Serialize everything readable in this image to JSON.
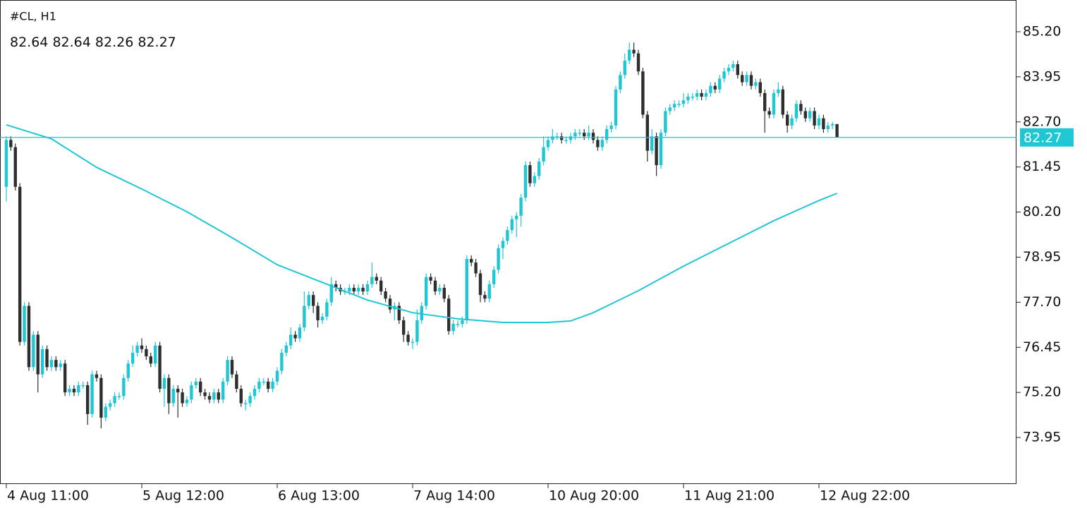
{
  "chart_data": {
    "type": "candlestick",
    "title": "#CL, H1",
    "up_color": "#1fc6d4",
    "down_color": "#2e2e2e",
    "price_line_color": "#1fc6d4",
    "ylim": [
      72.66,
      86.08
    ],
    "yticks": [
      {
        "value": 85.2,
        "label": "85.20"
      },
      {
        "value": 83.95,
        "label": "83.95"
      },
      {
        "value": 82.7,
        "label": "82.70"
      },
      {
        "value": 81.45,
        "label": "81.45"
      },
      {
        "value": 80.2,
        "label": "80.20"
      },
      {
        "value": 78.95,
        "label": "78.95"
      },
      {
        "value": 77.7,
        "label": "77.70"
      },
      {
        "value": 76.45,
        "label": "76.45"
      },
      {
        "value": 75.2,
        "label": "75.20"
      },
      {
        "value": 73.95,
        "label": "73.95"
      }
    ],
    "xlim": [
      -1.4,
      223.75
    ],
    "xticks": [
      {
        "value": 0,
        "label": "4 Aug 11:00"
      },
      {
        "value": 30,
        "label": "5 Aug 12:00"
      },
      {
        "value": 60,
        "label": "6 Aug 13:00"
      },
      {
        "value": 90,
        "label": "7 Aug 14:00"
      },
      {
        "value": 120,
        "label": "10 Aug 20:00"
      },
      {
        "value": 150,
        "label": "11 Aug 21:00"
      },
      {
        "value": 180,
        "label": "12 Aug 22:00"
      }
    ],
    "candles": {
      "open": [
        80.9,
        82.2,
        82.0,
        80.9,
        76.6,
        77.6,
        75.9,
        76.8,
        75.7,
        76.4,
        75.9,
        76.1,
        75.9,
        76.0,
        75.2,
        75.3,
        75.2,
        75.4,
        75.4,
        74.6,
        75.7,
        75.6,
        74.5,
        74.8,
        74.9,
        75.1,
        75.1,
        75.6,
        76.0,
        76.3,
        76.5,
        76.4,
        76.2,
        76.0,
        76.5,
        75.3,
        75.6,
        74.9,
        75.3,
        75.2,
        74.9,
        75.0,
        75.4,
        75.5,
        75.2,
        75.1,
        75.0,
        75.2,
        75.0,
        75.5,
        76.1,
        75.7,
        75.3,
        74.9,
        74.9,
        75.1,
        75.3,
        75.5,
        75.5,
        75.3,
        75.5,
        75.8,
        76.3,
        76.5,
        76.8,
        76.7,
        77.0,
        77.6,
        77.9,
        77.6,
        77.2,
        77.3,
        77.7,
        78.2,
        78.1,
        78.0,
        78.0,
        78.1,
        78.0,
        78.1,
        78.0,
        78.2,
        78.4,
        78.3,
        78.0,
        77.8,
        77.5,
        77.6,
        77.2,
        76.8,
        76.6,
        76.6,
        77.2,
        77.6,
        78.4,
        78.3,
        78.0,
        78.1,
        77.8,
        76.9,
        77.1,
        77.1,
        77.2,
        78.9,
        78.8,
        78.5,
        77.9,
        77.8,
        78.2,
        78.6,
        79.2,
        79.4,
        79.7,
        80.0,
        80.1,
        80.6,
        81.5,
        81.0,
        81.2,
        81.6,
        82.0,
        82.2,
        82.3,
        82.3,
        82.2,
        82.2,
        82.3,
        82.4,
        82.4,
        82.3,
        82.4,
        82.2,
        82.0,
        82.2,
        82.5,
        82.6,
        83.6,
        84.0,
        84.4,
        84.7,
        84.6,
        84.1,
        82.9,
        81.9,
        82.3,
        81.5,
        82.4,
        83.0,
        83.1,
        83.2,
        83.2,
        83.3,
        83.4,
        83.4,
        83.5,
        83.4,
        83.5,
        83.7,
        83.6,
        83.9,
        84.1,
        84.2,
        84.3,
        84.0,
        83.8,
        84.0,
        83.7,
        83.8,
        83.5,
        83.0,
        82.9,
        83.5,
        83.6,
        82.9,
        82.6,
        82.8,
        83.2,
        83.0,
        82.8,
        83.0,
        82.6,
        82.8,
        82.5,
        82.6,
        82.64
      ],
      "high": [
        82.3,
        82.3,
        82.1,
        81.0,
        77.7,
        77.7,
        76.9,
        76.9,
        76.5,
        76.5,
        76.2,
        76.2,
        76.1,
        76.1,
        75.4,
        75.4,
        75.5,
        75.5,
        75.5,
        75.8,
        75.8,
        75.7,
        74.9,
        75.0,
        75.2,
        75.2,
        75.7,
        76.1,
        76.5,
        76.6,
        76.7,
        76.5,
        76.3,
        76.6,
        76.6,
        75.7,
        75.7,
        75.4,
        75.4,
        75.3,
        75.1,
        75.5,
        75.6,
        75.6,
        75.3,
        75.2,
        75.3,
        75.3,
        75.6,
        76.2,
        76.2,
        75.8,
        75.4,
        75.0,
        75.2,
        75.4,
        75.6,
        75.6,
        75.6,
        75.6,
        75.9,
        76.4,
        76.6,
        77.0,
        76.9,
        77.1,
        78.0,
        78.0,
        78.0,
        77.7,
        77.4,
        77.8,
        78.4,
        78.3,
        78.2,
        78.1,
        78.2,
        78.2,
        78.2,
        78.2,
        78.3,
        78.8,
        78.5,
        78.4,
        78.1,
        77.9,
        77.7,
        77.7,
        77.3,
        76.9,
        76.7,
        77.5,
        77.7,
        78.5,
        78.5,
        78.4,
        78.2,
        78.2,
        77.9,
        77.2,
        77.2,
        77.3,
        79.0,
        79.0,
        78.9,
        78.6,
        78.0,
        78.3,
        78.7,
        79.3,
        79.5,
        79.8,
        80.1,
        80.2,
        80.7,
        81.6,
        81.6,
        81.3,
        81.7,
        82.3,
        82.3,
        82.5,
        82.4,
        82.4,
        82.3,
        82.4,
        82.5,
        82.5,
        82.5,
        82.6,
        82.5,
        82.3,
        82.3,
        82.6,
        82.7,
        83.7,
        84.1,
        84.6,
        84.9,
        84.9,
        84.7,
        84.2,
        83.0,
        82.5,
        82.4,
        82.5,
        83.1,
        83.2,
        83.3,
        83.3,
        83.5,
        83.5,
        83.5,
        83.6,
        83.6,
        83.6,
        83.8,
        83.8,
        84.0,
        84.2,
        84.3,
        84.4,
        84.4,
        84.1,
        84.1,
        84.1,
        83.9,
        83.9,
        83.6,
        83.1,
        83.6,
        83.8,
        83.7,
        83.0,
        82.9,
        83.3,
        83.3,
        83.1,
        83.1,
        83.1,
        82.9,
        82.9,
        82.7,
        82.7,
        82.64
      ],
      "low": [
        80.5,
        81.9,
        80.8,
        76.5,
        76.5,
        75.8,
        75.8,
        75.2,
        75.6,
        75.8,
        75.8,
        75.8,
        75.8,
        75.1,
        75.1,
        75.1,
        75.1,
        75.3,
        74.3,
        74.5,
        75.5,
        74.2,
        74.4,
        74.7,
        74.8,
        75.0,
        75.0,
        75.5,
        75.9,
        76.2,
        76.3,
        76.1,
        75.9,
        75.9,
        75.2,
        74.8,
        74.6,
        74.8,
        74.5,
        74.8,
        74.8,
        74.9,
        75.3,
        75.1,
        75.0,
        74.9,
        74.9,
        74.9,
        74.9,
        75.4,
        75.6,
        75.2,
        74.8,
        74.7,
        74.8,
        75.0,
        75.2,
        75.4,
        75.2,
        75.2,
        75.4,
        75.7,
        76.2,
        76.4,
        76.6,
        76.6,
        76.9,
        77.5,
        77.4,
        77.0,
        77.1,
        77.2,
        77.6,
        78.0,
        77.9,
        77.9,
        77.9,
        77.9,
        77.9,
        77.9,
        77.9,
        78.1,
        78.2,
        77.9,
        77.7,
        77.4,
        77.2,
        77.1,
        76.6,
        76.5,
        76.4,
        76.5,
        77.1,
        77.5,
        78.2,
        77.9,
        77.9,
        77.7,
        76.8,
        76.8,
        77.0,
        77.0,
        77.1,
        78.7,
        78.4,
        77.7,
        77.7,
        77.7,
        78.1,
        78.5,
        78.9,
        79.3,
        79.6,
        79.5,
        79.8,
        80.5,
        80.9,
        80.9,
        81.1,
        81.5,
        81.9,
        82.1,
        82.2,
        82.1,
        82.1,
        82.1,
        82.2,
        82.3,
        82.2,
        82.2,
        82.1,
        81.9,
        81.9,
        82.1,
        82.4,
        82.5,
        83.5,
        83.9,
        84.3,
        84.5,
        84.0,
        82.8,
        81.6,
        81.8,
        81.2,
        81.4,
        82.3,
        82.9,
        83.0,
        83.1,
        83.1,
        83.2,
        83.3,
        83.3,
        83.3,
        83.3,
        83.4,
        83.5,
        83.5,
        83.8,
        84.0,
        84.1,
        83.9,
        83.7,
        83.7,
        83.6,
        83.6,
        83.4,
        82.4,
        82.8,
        82.8,
        83.4,
        82.8,
        82.4,
        82.5,
        82.7,
        82.9,
        82.7,
        82.7,
        82.5,
        82.5,
        82.4,
        82.4,
        82.5,
        82.26
      ],
      "close": [
        82.2,
        82.0,
        80.9,
        76.6,
        77.6,
        75.9,
        76.8,
        75.7,
        76.4,
        75.9,
        76.1,
        75.9,
        76.0,
        75.2,
        75.3,
        75.2,
        75.4,
        75.4,
        74.6,
        75.7,
        75.6,
        74.5,
        74.8,
        74.9,
        75.1,
        75.1,
        75.6,
        76.0,
        76.3,
        76.5,
        76.4,
        76.2,
        76.0,
        76.5,
        75.3,
        75.6,
        74.9,
        75.3,
        75.2,
        74.9,
        75.0,
        75.4,
        75.5,
        75.2,
        75.1,
        75.0,
        75.2,
        75.0,
        75.5,
        76.1,
        75.7,
        75.3,
        74.9,
        74.9,
        75.1,
        75.3,
        75.5,
        75.5,
        75.3,
        75.5,
        75.8,
        76.3,
        76.5,
        76.8,
        76.7,
        77.0,
        77.6,
        77.9,
        77.6,
        77.2,
        77.3,
        77.7,
        78.2,
        78.1,
        78.0,
        78.0,
        78.1,
        78.0,
        78.1,
        78.0,
        78.2,
        78.4,
        78.3,
        78.0,
        77.8,
        77.5,
        77.6,
        77.2,
        76.8,
        76.6,
        76.6,
        77.2,
        77.6,
        78.4,
        78.3,
        78.0,
        78.1,
        77.8,
        76.9,
        77.1,
        77.1,
        77.2,
        78.9,
        78.8,
        78.5,
        77.9,
        77.8,
        78.2,
        78.6,
        79.2,
        79.4,
        79.7,
        80.0,
        80.1,
        80.6,
        81.5,
        81.0,
        81.2,
        81.6,
        82.0,
        82.2,
        82.3,
        82.3,
        82.2,
        82.2,
        82.3,
        82.4,
        82.4,
        82.3,
        82.4,
        82.2,
        82.0,
        82.2,
        82.5,
        82.6,
        83.6,
        84.0,
        84.4,
        84.7,
        84.6,
        84.1,
        82.9,
        81.9,
        82.3,
        81.5,
        82.4,
        83.0,
        83.1,
        83.2,
        83.2,
        83.3,
        83.4,
        83.4,
        83.5,
        83.4,
        83.5,
        83.7,
        83.6,
        83.9,
        84.1,
        84.2,
        84.3,
        84.0,
        83.8,
        84.0,
        83.7,
        83.8,
        83.5,
        83.0,
        82.9,
        83.5,
        83.6,
        82.9,
        82.6,
        82.8,
        83.2,
        83.0,
        82.8,
        83.0,
        82.6,
        82.8,
        82.5,
        82.6,
        82.64,
        82.27
      ]
    },
    "moving_average": {
      "color": "#1fc6d4",
      "x": [
        0,
        10,
        20,
        30,
        40,
        50,
        60,
        70,
        80,
        90,
        100,
        110,
        120,
        125,
        130,
        140,
        150,
        160,
        170,
        180,
        184
      ],
      "values": [
        82.62,
        82.23,
        81.44,
        80.84,
        80.21,
        79.49,
        78.74,
        78.25,
        77.76,
        77.41,
        77.24,
        77.14,
        77.14,
        77.18,
        77.41,
        78.02,
        78.7,
        79.33,
        79.96,
        80.52,
        80.72
      ]
    }
  }
}
